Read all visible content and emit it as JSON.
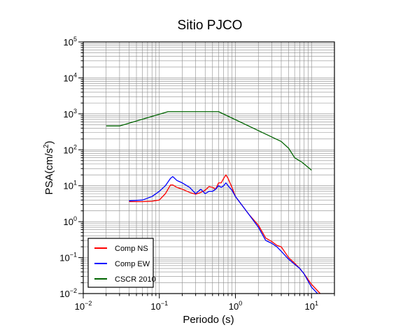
{
  "chart_data": {
    "type": "line",
    "title": "Sitio PJCO",
    "xlabel": "Periodo (s)",
    "ylabel_main": "PSA(cm/s",
    "ylabel_sup": "2",
    "ylabel_close": ")",
    "x_scale": "log",
    "y_scale": "log",
    "xlim": [
      0.01,
      20
    ],
    "ylim": [
      0.01,
      100000
    ],
    "grid": true,
    "legend_position": "bottom-left",
    "x_ticks": [
      {
        "value": 0.01,
        "base": "10",
        "exp": "−2"
      },
      {
        "value": 0.1,
        "base": "10",
        "exp": "−1"
      },
      {
        "value": 1,
        "base": "10",
        "exp": "0"
      },
      {
        "value": 10,
        "base": "10",
        "exp": "1"
      }
    ],
    "y_ticks": [
      {
        "value": 0.01,
        "base": "10",
        "exp": "−2"
      },
      {
        "value": 0.1,
        "base": "10",
        "exp": "−1"
      },
      {
        "value": 1,
        "base": "10",
        "exp": "0"
      },
      {
        "value": 10,
        "base": "10",
        "exp": "1"
      },
      {
        "value": 100,
        "base": "10",
        "exp": "2"
      },
      {
        "value": 1000,
        "base": "10",
        "exp": "3"
      },
      {
        "value": 10000,
        "base": "10",
        "exp": "4"
      },
      {
        "value": 100000,
        "base": "10",
        "exp": "5"
      }
    ],
    "series": [
      {
        "name": "Comp NS",
        "color": "#ff0000",
        "points": [
          [
            0.04,
            3.6
          ],
          [
            0.06,
            3.6
          ],
          [
            0.08,
            3.7
          ],
          [
            0.1,
            4.0
          ],
          [
            0.12,
            6.0
          ],
          [
            0.14,
            10.5
          ],
          [
            0.15,
            10.5
          ],
          [
            0.17,
            9.0
          ],
          [
            0.2,
            8.0
          ],
          [
            0.25,
            6.5
          ],
          [
            0.3,
            5.8
          ],
          [
            0.35,
            6.5
          ],
          [
            0.4,
            7.5
          ],
          [
            0.45,
            9.5
          ],
          [
            0.5,
            9.0
          ],
          [
            0.55,
            8.0
          ],
          [
            0.6,
            12.0
          ],
          [
            0.65,
            12.0
          ],
          [
            0.7,
            16.0
          ],
          [
            0.75,
            20.0
          ],
          [
            0.8,
            16.0
          ],
          [
            0.9,
            9.0
          ],
          [
            1.0,
            5.0
          ],
          [
            1.2,
            3.0
          ],
          [
            1.5,
            1.6
          ],
          [
            2.0,
            0.8
          ],
          [
            2.5,
            0.35
          ],
          [
            3.0,
            0.28
          ],
          [
            3.5,
            0.22
          ],
          [
            4.0,
            0.2
          ],
          [
            5.0,
            0.1
          ],
          [
            6.0,
            0.07
          ],
          [
            7.0,
            0.05
          ],
          [
            8.0,
            0.035
          ],
          [
            10.0,
            0.018
          ],
          [
            13.0,
            0.01
          ]
        ]
      },
      {
        "name": "Comp EW",
        "color": "#0000ff",
        "points": [
          [
            0.04,
            3.8
          ],
          [
            0.06,
            4.0
          ],
          [
            0.08,
            5.0
          ],
          [
            0.1,
            7.0
          ],
          [
            0.12,
            10.0
          ],
          [
            0.14,
            16.0
          ],
          [
            0.15,
            18.0
          ],
          [
            0.17,
            14.0
          ],
          [
            0.2,
            12.0
          ],
          [
            0.25,
            9.0
          ],
          [
            0.3,
            6.0
          ],
          [
            0.35,
            8.0
          ],
          [
            0.4,
            6.0
          ],
          [
            0.45,
            7.0
          ],
          [
            0.5,
            7.0
          ],
          [
            0.55,
            8.0
          ],
          [
            0.6,
            10.0
          ],
          [
            0.65,
            9.0
          ],
          [
            0.7,
            10.0
          ],
          [
            0.75,
            12.0
          ],
          [
            0.8,
            10.0
          ],
          [
            0.9,
            7.5
          ],
          [
            1.0,
            5.0
          ],
          [
            1.2,
            3.0
          ],
          [
            1.5,
            1.6
          ],
          [
            2.0,
            0.7
          ],
          [
            2.5,
            0.3
          ],
          [
            3.0,
            0.25
          ],
          [
            3.5,
            0.2
          ],
          [
            4.0,
            0.15
          ],
          [
            5.0,
            0.09
          ],
          [
            6.0,
            0.065
          ],
          [
            7.0,
            0.05
          ],
          [
            8.0,
            0.035
          ],
          [
            10.0,
            0.015
          ],
          [
            12.0,
            0.01
          ]
        ]
      },
      {
        "name": "CSCR 2010",
        "color": "#006400",
        "points": [
          [
            0.02,
            460
          ],
          [
            0.03,
            460
          ],
          [
            0.13,
            1150
          ],
          [
            0.6,
            1150
          ],
          [
            4.0,
            170
          ],
          [
            5.0,
            110
          ],
          [
            6.0,
            60
          ],
          [
            7.5,
            45
          ],
          [
            10.0,
            27
          ]
        ]
      }
    ]
  }
}
